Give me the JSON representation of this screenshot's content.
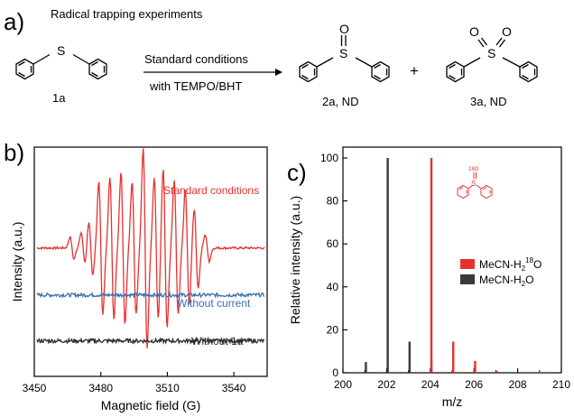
{
  "panel_a": {
    "label": "a)",
    "title": "Radical trapping experiments",
    "arrow_top": "Standard conditions",
    "arrow_bottom": "with TEMPO/BHT",
    "plus": "+",
    "compounds": [
      {
        "id": "1a",
        "label": "1a",
        "heteroatom": "S"
      },
      {
        "id": "2a",
        "label": "2a, ND",
        "heteroatom": "S",
        "oxygens": [
          "O"
        ]
      },
      {
        "id": "3a",
        "label": "3a, ND",
        "heteroatom": "S",
        "oxygens": [
          "O",
          "O"
        ]
      }
    ]
  },
  "panel_b": {
    "label": "b)",
    "chart_data": {
      "type": "line",
      "xlabel": "Magnetic field (G)",
      "ylabel": "Intensity (a.u.)",
      "xlim": [
        3450,
        3555
      ],
      "xticks": [
        3450,
        3480,
        3510,
        3540
      ],
      "series": [
        {
          "name": "Standard conditions",
          "color": "#e8312f",
          "baseline_frac": 0.56,
          "peaks": [
            {
              "x": 3467,
              "amp": 0.05
            },
            {
              "x": 3472,
              "amp": 0.07
            },
            {
              "x": 3475.5,
              "amp": 0.12
            },
            {
              "x": 3480,
              "amp": 0.3
            },
            {
              "x": 3485,
              "amp": 0.32
            },
            {
              "x": 3490,
              "amp": 0.34
            },
            {
              "x": 3495,
              "amp": 0.3
            },
            {
              "x": 3500,
              "amp": 0.45
            },
            {
              "x": 3505,
              "amp": 0.32
            },
            {
              "x": 3509,
              "amp": 0.36
            },
            {
              "x": 3514,
              "amp": 0.3
            },
            {
              "x": 3519,
              "amp": 0.26
            },
            {
              "x": 3523,
              "amp": 0.18
            },
            {
              "x": 3528,
              "amp": 0.06
            }
          ]
        },
        {
          "name": "Without current",
          "color": "#3b6fb0",
          "baseline_frac": 0.355,
          "noise": 0.008
        },
        {
          "name": "Without 1a",
          "color": "#2b2b2b",
          "baseline_frac": 0.155,
          "noise": 0.009
        }
      ]
    }
  },
  "panel_c": {
    "label": "c)",
    "inset_label": "18O",
    "chart_data": {
      "type": "bar",
      "xlabel": "m/z",
      "ylabel": "Relative intensity (a.u.)",
      "xlim": [
        200,
        210
      ],
      "ylim": [
        0,
        100
      ],
      "xticks": [
        200,
        202,
        204,
        206,
        208,
        210
      ],
      "yticks": [
        0,
        20,
        40,
        60,
        80,
        100
      ],
      "legend_position": "right",
      "series": [
        {
          "name": "MeCN-H₂¹⁸O",
          "name_main": "MeCN-H",
          "name_sub": "2",
          "name_sup": "18",
          "name_tail": "O",
          "color": "#e8312f",
          "x": [
            204.05,
            205.05,
            206.05,
            207.05,
            209.0
          ],
          "values": [
            100,
            14.5,
            5.5,
            0.8,
            0.4
          ]
        },
        {
          "name": "MeCN-H₂O",
          "name_main": "MeCN-H",
          "name_sub": "2",
          "name_sup": "",
          "name_tail": "O",
          "color": "#3a3a3a",
          "x": [
            201.05,
            202.05,
            203.05,
            204.05
          ],
          "values": [
            5.0,
            100,
            14.5,
            5.5
          ]
        }
      ]
    }
  }
}
